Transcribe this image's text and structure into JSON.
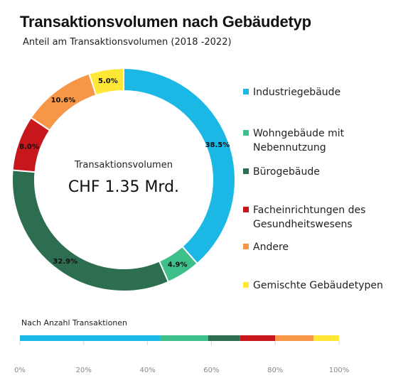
{
  "chart_data": [
    {
      "type": "pie",
      "title": "Transaktionsvolumen nach Gebäudetyp",
      "subtitle": "Anteil am Transaktionsvolumen (2018 -2022)",
      "center_label": "Transaktionsvolumen",
      "center_value": "CHF 1.35 Mrd.",
      "slices": [
        {
          "name": "Industriegebäude",
          "value": 38.5,
          "label": "38.5%",
          "color": "#1CB8E5"
        },
        {
          "name": "Wohngebäude mit Nebennutzung",
          "value": 4.9,
          "label": "4.9%",
          "color": "#3FBF8A"
        },
        {
          "name": "Bürogebäude",
          "value": 32.9,
          "label": "32.9%",
          "color": "#2E6E50"
        },
        {
          "name": "Facheinrichtungen des Gesundheitswesens",
          "value": 8.0,
          "label": "8.0%",
          "color": "#C8161D"
        },
        {
          "name": "Andere",
          "value": 10.6,
          "label": "10.6%",
          "color": "#F79646"
        },
        {
          "name": "Gemischte Gebäudetypen",
          "value": 5.0,
          "label": "5.0%",
          "color": "#FFE835"
        }
      ],
      "legend": [
        {
          "label_lines": [
            "Industriegebäude"
          ],
          "color": "#1CB8E5"
        },
        {
          "label_lines": [
            "Wohngebäude mit",
            "Nebennutzung"
          ],
          "color": "#3FBF8A"
        },
        {
          "label_lines": [
            "Bürogebäude"
          ],
          "color": "#2E6E50"
        },
        {
          "label_lines": [
            "Facheinrichtungen des",
            "Gesundheitswesens"
          ],
          "color": "#C8161D"
        },
        {
          "label_lines": [
            "Andere"
          ],
          "color": "#F79646"
        },
        {
          "label_lines": [
            "Gemischte Gebäudetypen"
          ],
          "color": "#FFE835"
        }
      ],
      "legend_placement": "right"
    },
    {
      "type": "bar",
      "orientation": "horizontal-stacked",
      "title": "Nach Anzahl Transaktionen",
      "xlim": [
        0,
        100
      ],
      "tick_labels": [
        "0%",
        "20%",
        "40%",
        "60%",
        "80%",
        "100%"
      ],
      "segments": [
        {
          "name": "Industriegebäude",
          "value": 44,
          "color": "#1CB8E5"
        },
        {
          "name": "Wohngebäude mit Nebennutzung",
          "value": 15,
          "color": "#3FBF8A"
        },
        {
          "name": "Bürogebäude",
          "value": 10,
          "color": "#2E6E50"
        },
        {
          "name": "Facheinrichtungen des Gesundheitswesens",
          "value": 11,
          "color": "#C8161D"
        },
        {
          "name": "Andere",
          "value": 12,
          "color": "#F79646"
        },
        {
          "name": "Gemischte Gebäudetypen",
          "value": 8,
          "color": "#FFE835"
        }
      ]
    }
  ]
}
